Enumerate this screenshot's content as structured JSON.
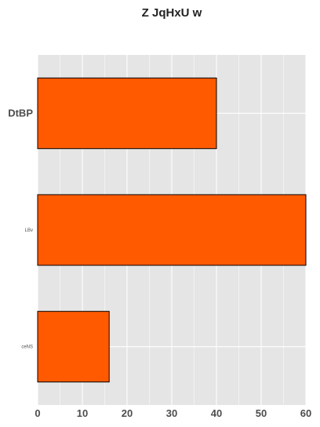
{
  "chart_data": {
    "type": "bar",
    "orientation": "horizontal",
    "title": "Z JqHxU w",
    "xlabel": "",
    "ylabel": "",
    "categories": [
      "DtBP",
      "LBv",
      "ceNS"
    ],
    "values": [
      40,
      60,
      16
    ],
    "xlim": [
      0,
      60
    ],
    "xticks": [
      0,
      10,
      20,
      30,
      40,
      50,
      60
    ],
    "grid": true,
    "colors": {
      "bar_fill": "#ff5a00",
      "bar_edge": "#000000",
      "panel_background": "#e5e5e5",
      "grid": "#ffffff"
    }
  }
}
